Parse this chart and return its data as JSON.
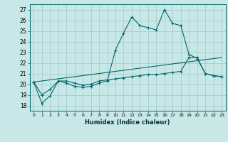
{
  "title": "",
  "xlabel": "Humidex (Indice chaleur)",
  "ylabel": "",
  "background_color": "#c8e8e8",
  "grid_color": "#a8cccc",
  "line_color": "#006868",
  "xlim": [
    -0.5,
    23.5
  ],
  "ylim": [
    17.5,
    27.5
  ],
  "yticks": [
    18,
    19,
    20,
    21,
    22,
    23,
    24,
    25,
    26,
    27
  ],
  "xticks": [
    0,
    1,
    2,
    3,
    4,
    5,
    6,
    7,
    8,
    9,
    10,
    11,
    12,
    13,
    14,
    15,
    16,
    17,
    18,
    19,
    20,
    21,
    22,
    23
  ],
  "line1_x": [
    0,
    1,
    2,
    3,
    4,
    5,
    6,
    7,
    8,
    9,
    10,
    11,
    12,
    13,
    14,
    15,
    16,
    17,
    18,
    19,
    20,
    21,
    22,
    23
  ],
  "line1_y": [
    20.2,
    18.2,
    18.9,
    20.3,
    20.1,
    19.8,
    19.7,
    19.8,
    20.1,
    20.3,
    23.2,
    24.8,
    26.3,
    25.5,
    25.3,
    25.1,
    27.0,
    25.7,
    25.5,
    22.8,
    22.4,
    21.0,
    20.8,
    20.7
  ],
  "line2_x": [
    0,
    1,
    2,
    3,
    4,
    5,
    6,
    7,
    8,
    9,
    10,
    11,
    12,
    13,
    14,
    15,
    16,
    17,
    18,
    19,
    20,
    21,
    22,
    23
  ],
  "line2_y": [
    20.2,
    19.0,
    19.5,
    20.3,
    20.3,
    20.1,
    19.9,
    20.0,
    20.3,
    20.4,
    20.5,
    20.6,
    20.7,
    20.8,
    20.9,
    20.9,
    21.0,
    21.1,
    21.2,
    22.5,
    22.5,
    21.0,
    20.8,
    20.7
  ],
  "line3_x": [
    0,
    23
  ],
  "line3_y": [
    20.2,
    22.5
  ]
}
